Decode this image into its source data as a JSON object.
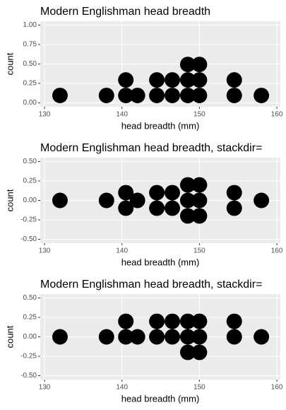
{
  "chart_data": [
    {
      "type": "dotplot",
      "title": "Modern Englishman head breadth",
      "x_label": "head breadth (mm)",
      "y_label": "count",
      "values": [
        132,
        138,
        140.5,
        140.5,
        142,
        144.5,
        144.5,
        146.5,
        146.5,
        148.5,
        148.5,
        148.5,
        150,
        150,
        150,
        154.5,
        154.5,
        158
      ],
      "binwidth": 2,
      "stackdir": "up",
      "color": "#000000",
      "xlim": [
        129.45,
        160.45
      ],
      "xticks": [
        130,
        140,
        150,
        160
      ],
      "ylim": [
        -0.05,
        1.05
      ],
      "yticks": [
        {
          "value": 0,
          "label": "0.00"
        },
        {
          "value": 0.25,
          "label": "0.25"
        },
        {
          "value": 0.5,
          "label": "0.50"
        },
        {
          "value": 0.75,
          "label": "0.75"
        },
        {
          "value": 1,
          "label": "1.00"
        }
      ],
      "grid": true
    },
    {
      "type": "dotplot",
      "title": "Modern Englishman head breadth, stackdir=",
      "x_label": "head breadth (mm)",
      "y_label": "count",
      "values": [
        132,
        138,
        140.5,
        140.5,
        142,
        144.5,
        144.5,
        146.5,
        146.5,
        148.5,
        148.5,
        148.5,
        150,
        150,
        150,
        154.5,
        154.5,
        158
      ],
      "binwidth": 2,
      "stackdir": "center",
      "color": "#000000",
      "xlim": [
        129.45,
        160.45
      ],
      "xticks": [
        130,
        140,
        150,
        160
      ],
      "ylim": [
        -0.55,
        0.55
      ],
      "yticks": [
        {
          "value": -0.5,
          "label": "-0.50"
        },
        {
          "value": -0.25,
          "label": "-0.25"
        },
        {
          "value": 0,
          "label": "0.00"
        },
        {
          "value": 0.25,
          "label": "0.25"
        },
        {
          "value": 0.5,
          "label": "0.50"
        }
      ],
      "grid": true
    },
    {
      "type": "dotplot",
      "title": "Modern Englishman head breadth, stackdir=",
      "x_label": "head breadth (mm)",
      "y_label": "count",
      "values": [
        132,
        138,
        140.5,
        140.5,
        142,
        144.5,
        144.5,
        146.5,
        146.5,
        148.5,
        148.5,
        148.5,
        150,
        150,
        150,
        154.5,
        154.5,
        158
      ],
      "binwidth": 2,
      "stackdir": "centerwhole",
      "color": "#000000",
      "xlim": [
        129.45,
        160.45
      ],
      "xticks": [
        130,
        140,
        150,
        160
      ],
      "ylim": [
        -0.55,
        0.55
      ],
      "yticks": [
        {
          "value": -0.5,
          "label": "-0.50"
        },
        {
          "value": -0.25,
          "label": "-0.25"
        },
        {
          "value": 0,
          "label": "0.00"
        },
        {
          "value": 0.25,
          "label": "0.25"
        },
        {
          "value": 0.5,
          "label": "0.50"
        }
      ],
      "grid": true
    }
  ]
}
